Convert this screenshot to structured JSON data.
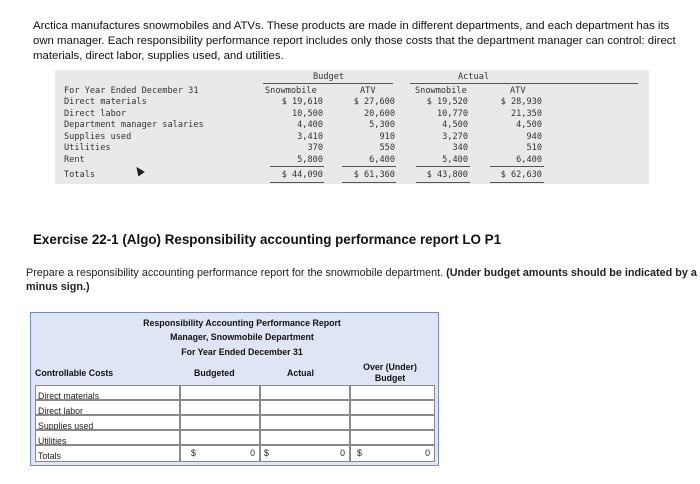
{
  "intro_text": "Arctica manufactures snowmobiles and ATVs. These products are made in different departments, and each department has its own manager. Each responsibility performance report includes only those costs that the department manager can control: direct materials, direct labor, supplies used, and utilities.",
  "budget_table": {
    "group_budget": "Budget",
    "group_actual": "Actual",
    "period_label": "For Year Ended December 31",
    "columns": [
      "Snowmobile",
      "ATV",
      "Snowmobile",
      "ATV"
    ],
    "rows": [
      {
        "label": "Direct materials",
        "values": [
          "$ 19,610",
          "$ 27,600",
          "$ 19,520",
          "$ 28,930"
        ]
      },
      {
        "label": "Direct labor",
        "values": [
          "10,500",
          "20,600",
          "10,770",
          "21,350"
        ]
      },
      {
        "label": "Department manager salaries",
        "values": [
          "4,400",
          "5,300",
          "4,500",
          "4,500"
        ]
      },
      {
        "label": "Supplies used",
        "values": [
          "3,410",
          "910",
          "3,270",
          "940"
        ]
      },
      {
        "label": "Utilities",
        "values": [
          "370",
          "550",
          "340",
          "510"
        ]
      },
      {
        "label": "Rent",
        "values": [
          "5,800",
          "6,400",
          "5,400",
          "6,400"
        ]
      },
      {
        "label": "Totals",
        "values": [
          "$ 44,090",
          "$ 61,360",
          "$ 43,800",
          "$ 62,630"
        ]
      }
    ]
  },
  "exercise_title": "Exercise 22-1 (Algo) Responsibility accounting performance report LO P1",
  "prepare_text": "Prepare a responsibility accounting performance report for the snowmobile department.",
  "prepare_bold": "(Under budget amounts should be indicated by a minus sign.)",
  "report": {
    "title1": "Responsibility Accounting Performance Report",
    "title2": "Manager, Snowmobile Department",
    "title3": "For Year Ended December 31",
    "col_costs": "Controllable Costs",
    "col_budgeted": "Budgeted",
    "col_actual": "Actual",
    "col_over": "Over (Under) Budget",
    "rows": [
      "Direct materials",
      "Direct labor",
      "Supplies used",
      "Utilities"
    ],
    "totals_label": "Totals",
    "dollar": "$",
    "total_budgeted": "0",
    "total_actual": "0",
    "total_over": "0"
  }
}
